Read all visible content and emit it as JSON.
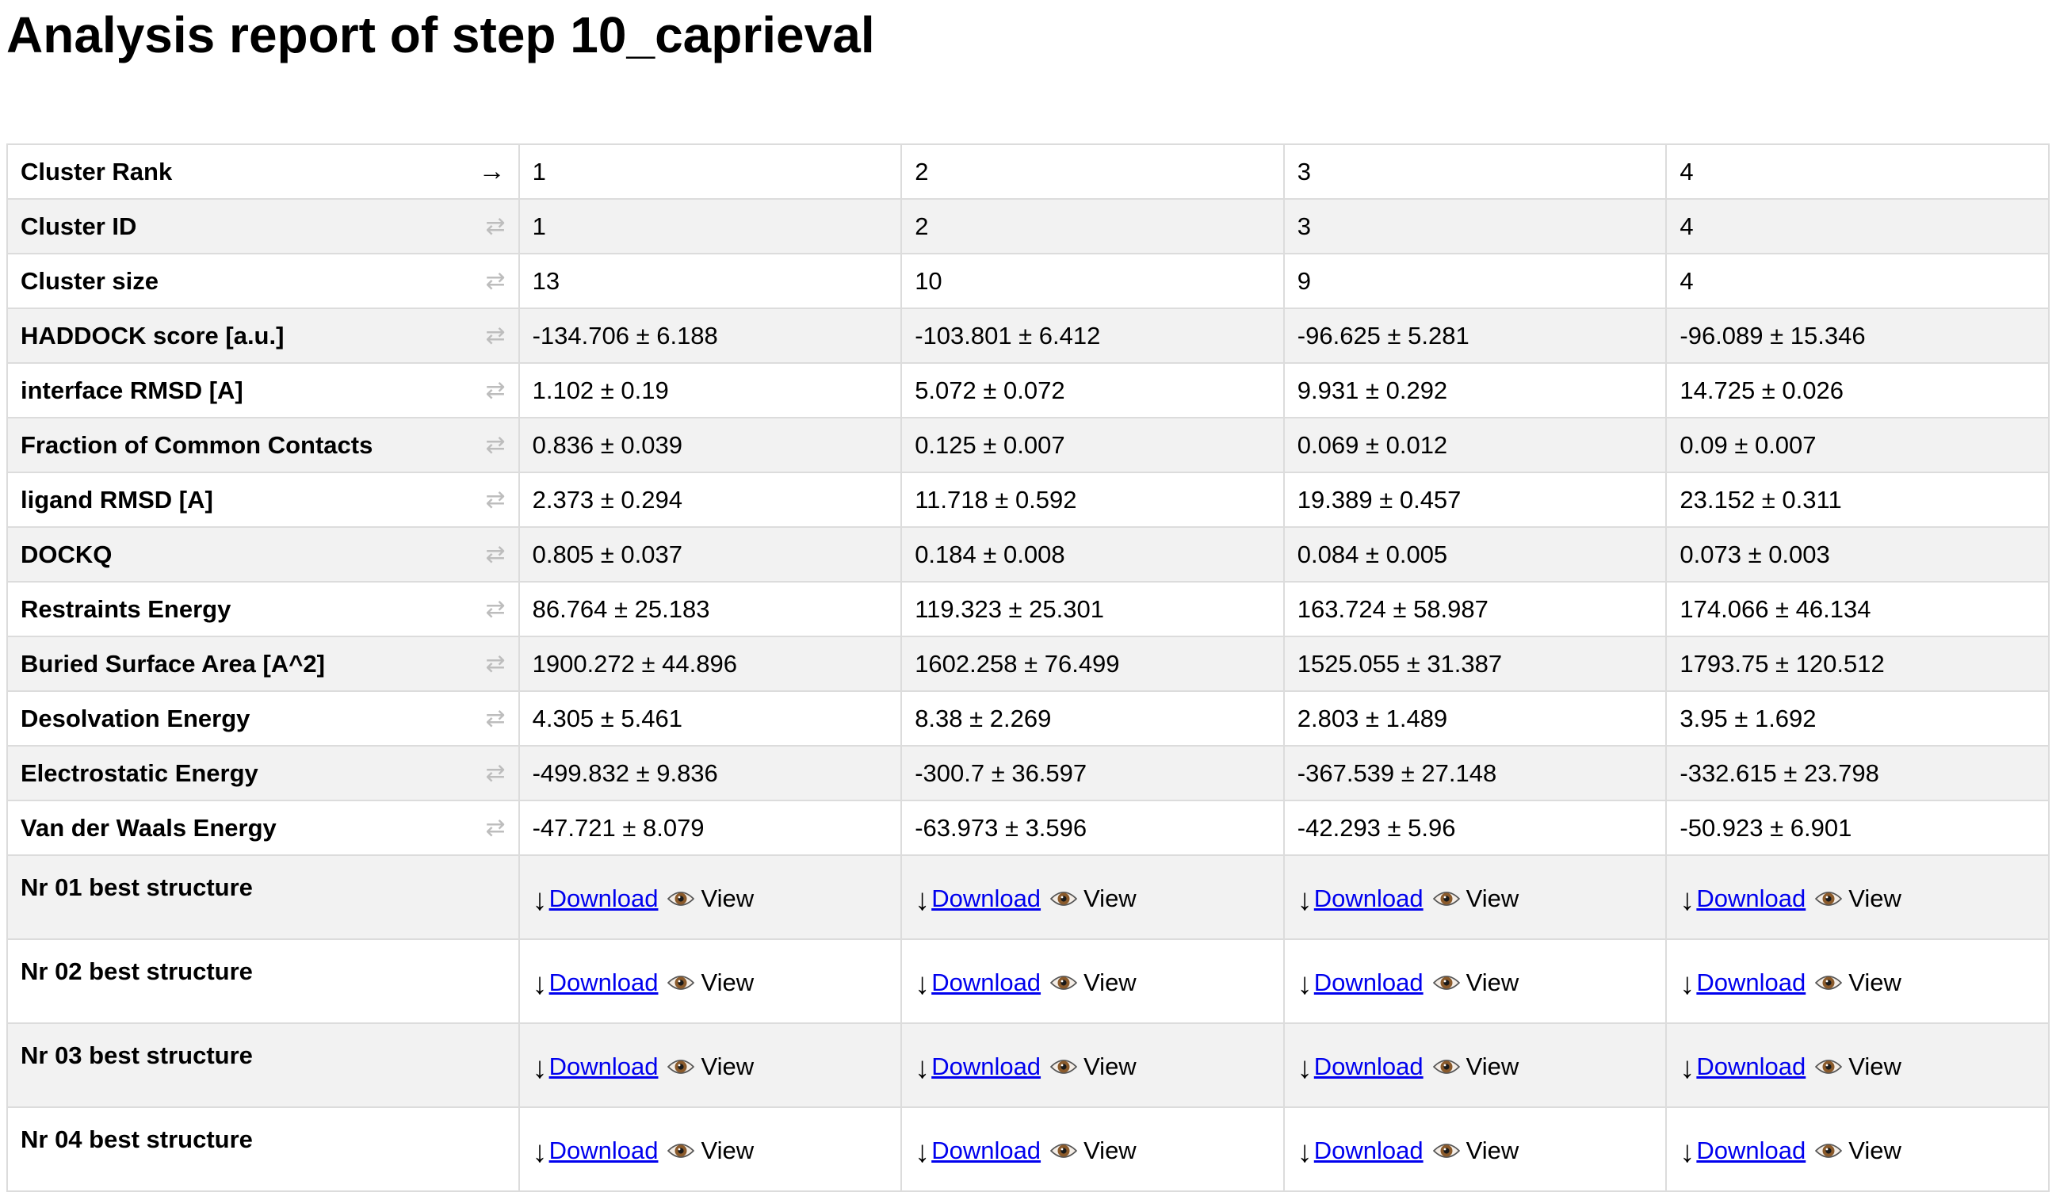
{
  "page": {
    "title": "Analysis report of step 10_caprieval"
  },
  "icons": {
    "sort_active": "→",
    "sort_inactive": "⇄",
    "download_arrow": "↓",
    "eye": "eye-icon"
  },
  "table": {
    "rows": [
      {
        "label": "Cluster Rank",
        "values": [
          "1",
          "2",
          "3",
          "4"
        ],
        "sort": "active"
      },
      {
        "label": "Cluster ID",
        "values": [
          "1",
          "2",
          "3",
          "4"
        ],
        "sort": "inactive"
      },
      {
        "label": "Cluster size",
        "values": [
          "13",
          "10",
          "9",
          "4"
        ],
        "sort": "inactive"
      },
      {
        "label": "HADDOCK score [a.u.]",
        "values": [
          "-134.706 ± 6.188",
          "-103.801 ± 6.412",
          "-96.625 ± 5.281",
          "-96.089 ± 15.346"
        ],
        "sort": "inactive"
      },
      {
        "label": "interface RMSD [A]",
        "values": [
          "1.102 ± 0.19",
          "5.072 ± 0.072",
          "9.931 ± 0.292",
          "14.725 ± 0.026"
        ],
        "sort": "inactive"
      },
      {
        "label": "Fraction of Common Contacts",
        "values": [
          "0.836 ± 0.039",
          "0.125 ± 0.007",
          "0.069 ± 0.012",
          "0.09 ± 0.007"
        ],
        "sort": "inactive"
      },
      {
        "label": "ligand RMSD [A]",
        "values": [
          "2.373 ± 0.294",
          "11.718 ± 0.592",
          "19.389 ± 0.457",
          "23.152 ± 0.311"
        ],
        "sort": "inactive"
      },
      {
        "label": "DOCKQ",
        "values": [
          "0.805 ± 0.037",
          "0.184 ± 0.008",
          "0.084 ± 0.005",
          "0.073 ± 0.003"
        ],
        "sort": "inactive"
      },
      {
        "label": "Restraints Energy",
        "values": [
          "86.764 ± 25.183",
          "119.323 ± 25.301",
          "163.724 ± 58.987",
          "174.066 ± 46.134"
        ],
        "sort": "inactive"
      },
      {
        "label": "Buried Surface Area [A^2]",
        "values": [
          "1900.272 ± 44.896",
          "1602.258 ± 76.499",
          "1525.055 ± 31.387",
          "1793.75 ± 120.512"
        ],
        "sort": "inactive"
      },
      {
        "label": "Desolvation Energy",
        "values": [
          "4.305 ± 5.461",
          "8.38 ± 2.269",
          "2.803 ± 1.489",
          "3.95 ± 1.692"
        ],
        "sort": "inactive"
      },
      {
        "label": "Electrostatic Energy",
        "values": [
          "-499.832 ± 9.836",
          "-300.7 ± 36.597",
          "-367.539 ± 27.148",
          "-332.615 ± 23.798"
        ],
        "sort": "inactive"
      },
      {
        "label": "Van der Waals Energy",
        "values": [
          "-47.721 ± 8.079",
          "-63.973 ± 3.596",
          "-42.293 ± 5.96",
          "-50.923 ± 6.901"
        ],
        "sort": "inactive"
      }
    ],
    "structure_rows": [
      {
        "label": "Nr 01 best structure"
      },
      {
        "label": "Nr 02 best structure"
      },
      {
        "label": "Nr 03 best structure"
      },
      {
        "label": "Nr 04 best structure"
      }
    ],
    "download_label": "Download",
    "view_label": "View"
  }
}
